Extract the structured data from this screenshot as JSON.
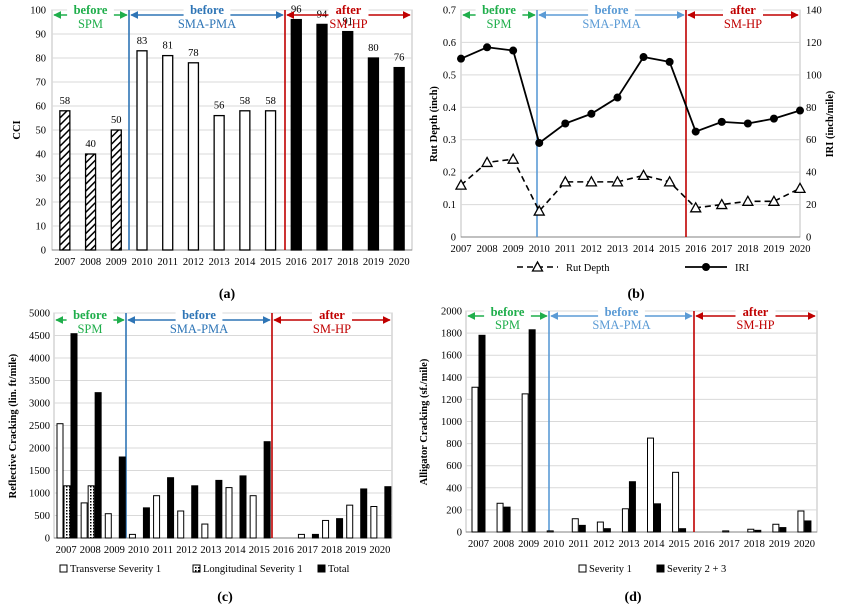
{
  "years": [
    "2007",
    "2008",
    "2009",
    "2010",
    "2011",
    "2012",
    "2013",
    "2014",
    "2015",
    "2016",
    "2017",
    "2018",
    "2019",
    "2020"
  ],
  "period_labels": {
    "before_spm": {
      "line1": "before",
      "line2": "SPM"
    },
    "before_sma": {
      "line1": "before",
      "line2": "SMA-PMA"
    },
    "after_smhp": {
      "line1": "after",
      "line2": "SM-HP"
    }
  },
  "colors": {
    "spm": "#1fae4b",
    "sma": "#2e75b6",
    "smhp": "#c00000",
    "sma_light": "#5b9bd5"
  },
  "panels": {
    "a": {
      "caption": "(a)"
    },
    "b": {
      "caption": "(b)"
    },
    "c": {
      "caption": "(c)"
    },
    "d": {
      "caption": "(d)"
    }
  },
  "chart_data": [
    {
      "id": "a",
      "type": "bar",
      "ylabel": "CCI",
      "ylim": [
        0,
        100
      ],
      "yticks": [
        0,
        10,
        20,
        30,
        40,
        50,
        60,
        70,
        80,
        90,
        100
      ],
      "grid": true,
      "categories": [
        "2007",
        "2008",
        "2009",
        "2010",
        "2011",
        "2012",
        "2013",
        "2014",
        "2015",
        "2016",
        "2017",
        "2018",
        "2019",
        "2020"
      ],
      "values": [
        58,
        40,
        50,
        83,
        81,
        78,
        56,
        58,
        58,
        96,
        94,
        91,
        80,
        76
      ],
      "data_labels": [
        "58",
        "40",
        "50",
        "83",
        "81",
        "78",
        "56",
        "58",
        "58",
        "96",
        "94",
        "91",
        "80",
        "76"
      ]
    },
    {
      "id": "b",
      "type": "line",
      "ylabel": "Rut Depth (inch)",
      "y2label": "IRI (inch/mile)",
      "ylim": [
        0,
        0.7
      ],
      "yticks": [
        "0",
        "0.1",
        "0.2",
        "0.3",
        "0.4",
        "0.5",
        "0.6",
        "0.7"
      ],
      "y2lim": [
        0,
        140
      ],
      "y2ticks": [
        "0",
        "20",
        "40",
        "60",
        "80",
        "100",
        "120",
        "140"
      ],
      "grid": true,
      "categories": [
        "2007",
        "2008",
        "2009",
        "2010",
        "2011",
        "2012",
        "2013",
        "2014",
        "2015",
        "2016",
        "2017",
        "2018",
        "2019",
        "2020"
      ],
      "series": [
        {
          "name": "Rut Depth",
          "axis": "left",
          "values": [
            0.16,
            0.23,
            0.24,
            0.08,
            0.17,
            0.17,
            0.17,
            0.19,
            0.17,
            0.09,
            0.1,
            0.11,
            0.11,
            0.15
          ]
        },
        {
          "name": "IRI",
          "axis": "right",
          "values": [
            110,
            117,
            115,
            58,
            70,
            76,
            86,
            111,
            108,
            65,
            71,
            70,
            73,
            78
          ]
        }
      ],
      "legend_position": "bottom"
    },
    {
      "id": "c",
      "type": "bar",
      "ylabel": "Reflective Cracking (lin. ft/mile)",
      "ylim": [
        0,
        5000
      ],
      "yticks": [
        "0",
        "500",
        "1000",
        "1500",
        "2000",
        "2500",
        "3000",
        "3500",
        "4000",
        "4500",
        "5000"
      ],
      "grid": true,
      "categories": [
        "2007",
        "2008",
        "2009",
        "2010",
        "2011",
        "2012",
        "2013",
        "2014",
        "2015",
        "2016",
        "2017",
        "2018",
        "2019",
        "2020"
      ],
      "series": [
        {
          "name": "Transverse Severity 1",
          "values": [
            2540,
            780,
            540,
            80,
            940,
            600,
            310,
            1120,
            940,
            0,
            80,
            390,
            730,
            700
          ]
        },
        {
          "name": "Longitudinal Severity 1",
          "values": [
            1160,
            1160,
            0,
            0,
            0,
            0,
            0,
            0,
            0,
            0,
            0,
            0,
            0,
            0
          ]
        },
        {
          "name": "Total",
          "values": [
            4540,
            3230,
            1800,
            670,
            1340,
            1160,
            1280,
            1380,
            2140,
            0,
            80,
            430,
            1090,
            1140
          ]
        }
      ],
      "legend_position": "bottom"
    },
    {
      "id": "d",
      "type": "bar",
      "ylabel": "Alligator Cracking (sf./mile)",
      "ylim": [
        0,
        2000
      ],
      "yticks": [
        "0",
        "200",
        "400",
        "600",
        "800",
        "1000",
        "1200",
        "1400",
        "1600",
        "1800",
        "2000"
      ],
      "grid": true,
      "categories": [
        "2007",
        "2008",
        "2009",
        "2010",
        "2011",
        "2012",
        "2013",
        "2014",
        "2015",
        "2016",
        "2017",
        "2018",
        "2019",
        "2020"
      ],
      "series": [
        {
          "name": "Severity 1",
          "values": [
            1310,
            260,
            1250,
            10,
            120,
            90,
            210,
            850,
            540,
            0,
            10,
            25,
            70,
            190
          ]
        },
        {
          "name": "Severity 2 + 3",
          "values": [
            1780,
            225,
            1830,
            0,
            60,
            30,
            455,
            255,
            30,
            0,
            0,
            15,
            40,
            100
          ]
        }
      ],
      "legend_position": "bottom"
    }
  ]
}
